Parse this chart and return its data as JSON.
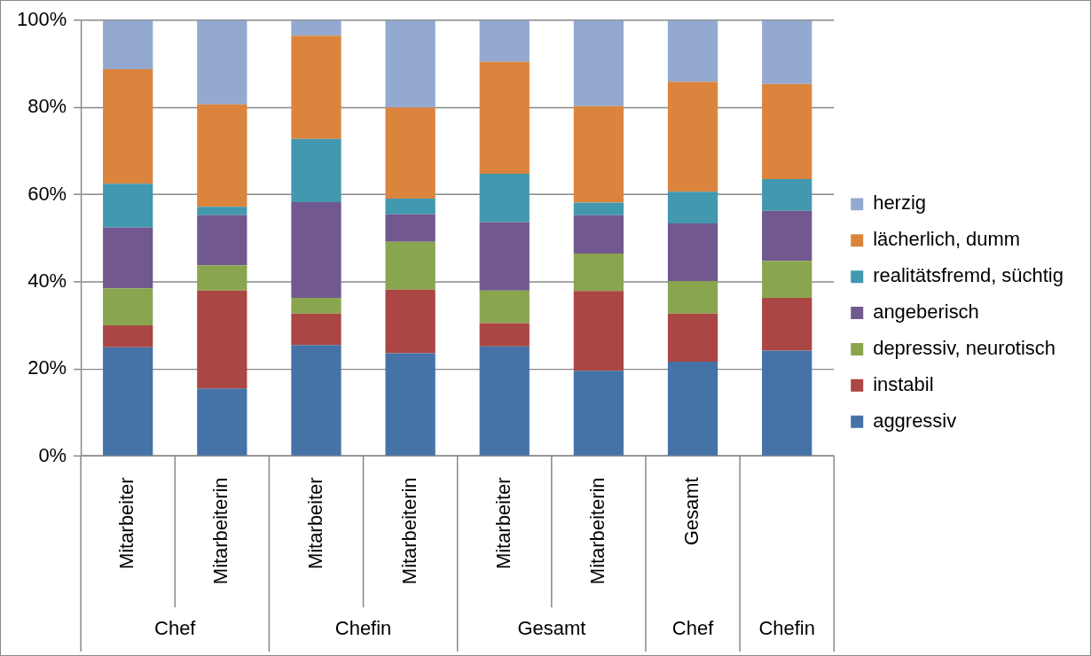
{
  "chart_data": {
    "type": "bar",
    "stacked": true,
    "categories": [
      "Mitarbeiter",
      "Mitarbeiterin",
      "Mitarbeiter",
      "Mitarbeiterin",
      "Mitarbeiter",
      "Mitarbeiterin",
      "Gesamt",
      null
    ],
    "annotations": [
      "Chef",
      "Chefin",
      "Gesamt",
      "Chef",
      "Chefin"
    ],
    "ylim": [
      0,
      100
    ],
    "yticks": [
      {
        "value": 0,
        "label": "0%"
      },
      {
        "value": 20,
        "label": "20%"
      },
      {
        "value": 40,
        "label": "40%"
      },
      {
        "value": 60,
        "label": "60%"
      },
      {
        "value": 80,
        "label": "80%"
      },
      {
        "value": 100,
        "label": "100%"
      }
    ],
    "grid": "y",
    "legend": "right",
    "series": [
      {
        "name": "aggressiv",
        "color": "#4572a7",
        "values": [
          25,
          15.5,
          25.5,
          23.6,
          25.2,
          19.6,
          21.7,
          24.2
        ]
      },
      {
        "name": "instabil",
        "color": "#aa4643",
        "values": [
          5,
          22.5,
          7.2,
          14.6,
          5.3,
          18.3,
          11,
          12.1
        ]
      },
      {
        "name": "depressiv, neurotisch",
        "color": "#89a54e",
        "values": [
          8.5,
          5.8,
          3.6,
          11,
          7.5,
          8.6,
          7.5,
          8.5
        ]
      },
      {
        "name": "angeberisch",
        "color": "#71588f",
        "values": [
          14,
          11.5,
          22,
          6.3,
          15.7,
          8.8,
          13.2,
          11.5
        ]
      },
      {
        "name": "realitätsfremd, süchtig",
        "color": "#4198af",
        "values": [
          10,
          1.9,
          14.5,
          3.6,
          11.1,
          2.9,
          7.3,
          7.3
        ]
      },
      {
        "name": "lächerlich, dumm",
        "color": "#db843d",
        "values": [
          26.3,
          23.5,
          23.7,
          20.9,
          25.7,
          22.1,
          25.2,
          21.8
        ]
      },
      {
        "name": "herzig",
        "color": "#93a9cf",
        "values": [
          11.2,
          19.3,
          3.5,
          20,
          9.5,
          19.7,
          14.1,
          14.6
        ]
      }
    ]
  }
}
